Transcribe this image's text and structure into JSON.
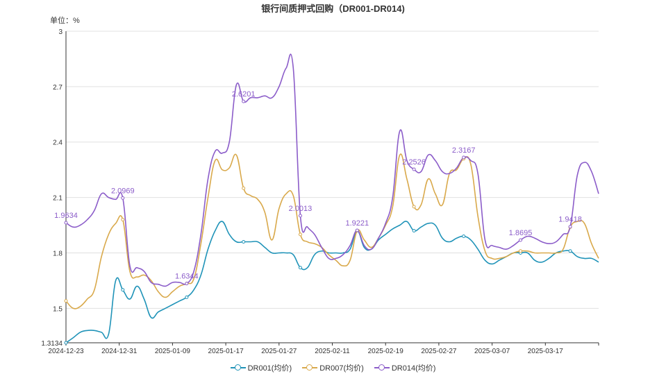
{
  "chart_data": {
    "type": "line",
    "title": "银行间质押式回购（DR001-DR014)",
    "unit_label": "单位：%",
    "x_ticks": [
      "2024-12-23",
      "2024-12-31",
      "2025-01-09",
      "2025-01-17",
      "2025-01-27",
      "2025-02-11",
      "2025-02-19",
      "2025-02-27",
      "2025-03-07",
      "2025-03-17"
    ],
    "y_ticks": [
      "1.3134",
      "1.5",
      "1.8",
      "2.1",
      "2.4",
      "2.7",
      "3"
    ],
    "ylim": [
      1.3134,
      3
    ],
    "grid": true,
    "legend_position": "bottom",
    "series": [
      {
        "name": "DR001(均价)",
        "color": "#1f93b8",
        "values": [
          1.3134,
          1.34,
          1.37,
          1.38,
          1.38,
          1.37,
          1.36,
          1.65,
          1.6,
          1.55,
          1.62,
          1.55,
          1.45,
          1.48,
          1.5,
          1.52,
          1.54,
          1.56,
          1.6,
          1.68,
          1.82,
          1.92,
          1.97,
          1.9,
          1.86,
          1.86,
          1.86,
          1.86,
          1.83,
          1.8,
          1.8,
          1.8,
          1.79,
          1.72,
          1.72,
          1.79,
          1.81,
          1.8,
          1.8,
          1.8,
          1.82,
          1.92,
          1.83,
          1.82,
          1.87,
          1.9,
          1.93,
          1.95,
          1.97,
          1.92,
          1.94,
          1.96,
          1.95,
          1.88,
          1.86,
          1.88,
          1.89,
          1.87,
          1.82,
          1.76,
          1.74,
          1.76,
          1.78,
          1.8,
          1.8,
          1.8,
          1.76,
          1.75,
          1.77,
          1.8,
          1.81,
          1.81,
          1.78,
          1.77,
          1.77,
          1.75
        ]
      },
      {
        "name": "DR007(均价)",
        "color": "#d9a94b",
        "values": [
          1.54,
          1.5,
          1.51,
          1.55,
          1.6,
          1.78,
          1.9,
          1.96,
          1.98,
          1.7,
          1.67,
          1.68,
          1.65,
          1.59,
          1.56,
          1.59,
          1.62,
          1.634,
          1.66,
          1.85,
          2.1,
          2.3,
          2.25,
          2.26,
          2.33,
          2.15,
          2.11,
          2.09,
          2.02,
          1.87,
          2.04,
          2.12,
          2.11,
          1.9,
          1.86,
          1.85,
          1.83,
          1.79,
          1.76,
          1.73,
          1.76,
          1.92,
          1.87,
          1.83,
          1.88,
          1.95,
          2.05,
          2.33,
          2.2,
          2.05,
          2.06,
          2.2,
          2.12,
          2.06,
          2.23,
          2.25,
          2.31,
          2.28,
          2.0,
          1.81,
          1.77,
          1.77,
          1.78,
          1.8,
          1.81,
          1.81,
          1.8,
          1.8,
          1.8,
          1.8,
          1.82,
          1.94,
          1.97,
          1.96,
          1.85,
          1.77
        ]
      },
      {
        "name": "DR014(均价)",
        "color": "#8b5cc9",
        "values": [
          1.9634,
          1.94,
          1.95,
          1.98,
          2.03,
          2.12,
          2.1,
          2.09,
          2.0969,
          1.73,
          1.72,
          1.7,
          1.64,
          1.63,
          1.62,
          1.64,
          1.64,
          1.634,
          1.7,
          1.9,
          2.2,
          2.35,
          2.34,
          2.4,
          2.71,
          2.62,
          2.64,
          2.64,
          2.65,
          2.64,
          2.7,
          2.8,
          2.8,
          2.0013,
          1.94,
          1.9,
          1.83,
          1.77,
          1.77,
          1.79,
          1.84,
          1.9221,
          1.84,
          1.82,
          1.88,
          1.96,
          2.1,
          2.46,
          2.3,
          2.2526,
          2.24,
          2.33,
          2.3,
          2.24,
          2.23,
          2.26,
          2.3167,
          2.3,
          2.23,
          1.87,
          1.84,
          1.83,
          1.82,
          1.84,
          1.8695,
          1.89,
          1.88,
          1.86,
          1.85,
          1.86,
          1.9,
          1.9418,
          2.22,
          2.29,
          2.24,
          2.12
        ]
      }
    ],
    "annotations": [
      {
        "series": 2,
        "index": 0,
        "text": "1.9634"
      },
      {
        "series": 2,
        "index": 8,
        "text": "2.0969"
      },
      {
        "series": 2,
        "index": 17,
        "text": "1.6344"
      },
      {
        "series": 2,
        "index": 25,
        "text": "2.6201"
      },
      {
        "series": 2,
        "index": 33,
        "text": "2.0013"
      },
      {
        "series": 2,
        "index": 41,
        "text": "1.9221"
      },
      {
        "series": 2,
        "index": 49,
        "text": "2.2526"
      },
      {
        "series": 2,
        "index": 56,
        "text": "2.3167"
      },
      {
        "series": 2,
        "index": 64,
        "text": "1.8695"
      },
      {
        "series": 2,
        "index": 71,
        "text": "1.9418"
      }
    ]
  }
}
